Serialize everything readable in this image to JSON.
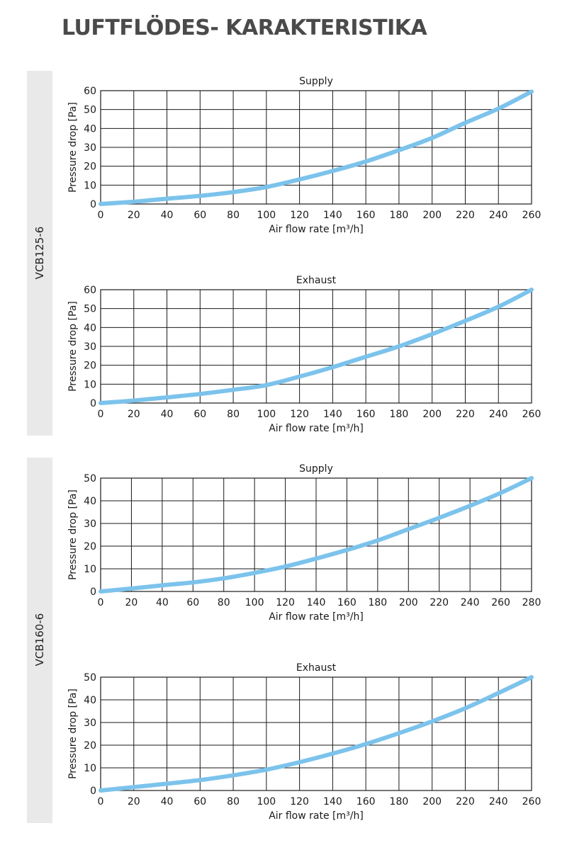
{
  "page": {
    "title": "LUFTFLÖDES- KARAKTERISTIKA"
  },
  "models": [
    {
      "label": "VCB125-6"
    },
    {
      "label": "VCB160-6"
    }
  ],
  "colors": {
    "curve": "#7cc3ec",
    "grid": "#1a1a1a",
    "band": "#e9e9e9"
  },
  "chart_data": [
    {
      "type": "line",
      "model": "VCB125-6",
      "title": "Supply",
      "xlabel": "Air flow rate [m³/h]",
      "ylabel": "Pressure drop [Pa]",
      "xlim": [
        0,
        260
      ],
      "ylim": [
        0,
        60
      ],
      "x_ticks": [
        0,
        20,
        40,
        60,
        80,
        100,
        120,
        140,
        160,
        180,
        200,
        220,
        240,
        260
      ],
      "y_ticks": [
        0,
        10,
        20,
        30,
        40,
        50,
        60
      ],
      "grid": true,
      "series": [
        {
          "x": [
            0,
            20,
            40,
            60,
            80,
            100,
            120,
            140,
            160,
            180,
            200,
            220,
            240,
            260
          ],
          "y": [
            0,
            1.2,
            2.8,
            4.3,
            6.3,
            9,
            13,
            17.5,
            22.5,
            28.5,
            35,
            43,
            50.5,
            59.5
          ]
        }
      ]
    },
    {
      "type": "line",
      "model": "VCB125-6",
      "title": "Exhaust",
      "xlabel": "Air flow rate [m³/h]",
      "ylabel": "Pressure drop [Pa]",
      "xlim": [
        0,
        260
      ],
      "ylim": [
        0,
        60
      ],
      "x_ticks": [
        0,
        20,
        40,
        60,
        80,
        100,
        120,
        140,
        160,
        180,
        200,
        220,
        240,
        260
      ],
      "y_ticks": [
        0,
        10,
        20,
        30,
        40,
        50,
        60
      ],
      "grid": true,
      "series": [
        {
          "x": [
            0,
            20,
            40,
            60,
            80,
            100,
            120,
            140,
            160,
            180,
            200,
            220,
            240,
            260
          ],
          "y": [
            0,
            1.3,
            3,
            4.8,
            7,
            9.5,
            14,
            19,
            24.5,
            30,
            36.5,
            43.5,
            51,
            60
          ]
        }
      ]
    },
    {
      "type": "line",
      "model": "VCB160-6",
      "title": "Supply",
      "xlabel": "Air flow rate [m³/h]",
      "ylabel": "Pressure drop [Pa]",
      "xlim": [
        0,
        280
      ],
      "ylim": [
        0,
        50
      ],
      "x_ticks": [
        0,
        20,
        40,
        60,
        80,
        100,
        120,
        140,
        160,
        180,
        200,
        220,
        240,
        260,
        280
      ],
      "y_ticks": [
        0,
        10,
        20,
        30,
        40,
        50
      ],
      "grid": true,
      "series": [
        {
          "x": [
            0,
            20,
            40,
            60,
            80,
            100,
            120,
            140,
            160,
            180,
            200,
            220,
            240,
            260,
            280
          ],
          "y": [
            0,
            1.3,
            2.7,
            4,
            5.8,
            8.2,
            11,
            14.5,
            18.3,
            22.5,
            27.5,
            32.5,
            37.8,
            43.5,
            50
          ]
        }
      ]
    },
    {
      "type": "line",
      "model": "VCB160-6",
      "title": "Exhaust",
      "xlabel": "Air flow rate [m³/h]",
      "ylabel": "Pressure drop [Pa]",
      "xlim": [
        0,
        260
      ],
      "ylim": [
        0,
        50
      ],
      "x_ticks": [
        0,
        20,
        40,
        60,
        80,
        100,
        120,
        140,
        160,
        180,
        200,
        220,
        240,
        260
      ],
      "y_ticks": [
        0,
        10,
        20,
        30,
        40,
        50
      ],
      "grid": true,
      "series": [
        {
          "x": [
            0,
            20,
            40,
            60,
            80,
            100,
            120,
            140,
            160,
            180,
            200,
            220,
            240,
            260
          ],
          "y": [
            0,
            1.5,
            3,
            4.6,
            6.7,
            9.2,
            12.5,
            16.3,
            20.5,
            25.3,
            30.5,
            36.3,
            43,
            50
          ]
        }
      ]
    }
  ]
}
